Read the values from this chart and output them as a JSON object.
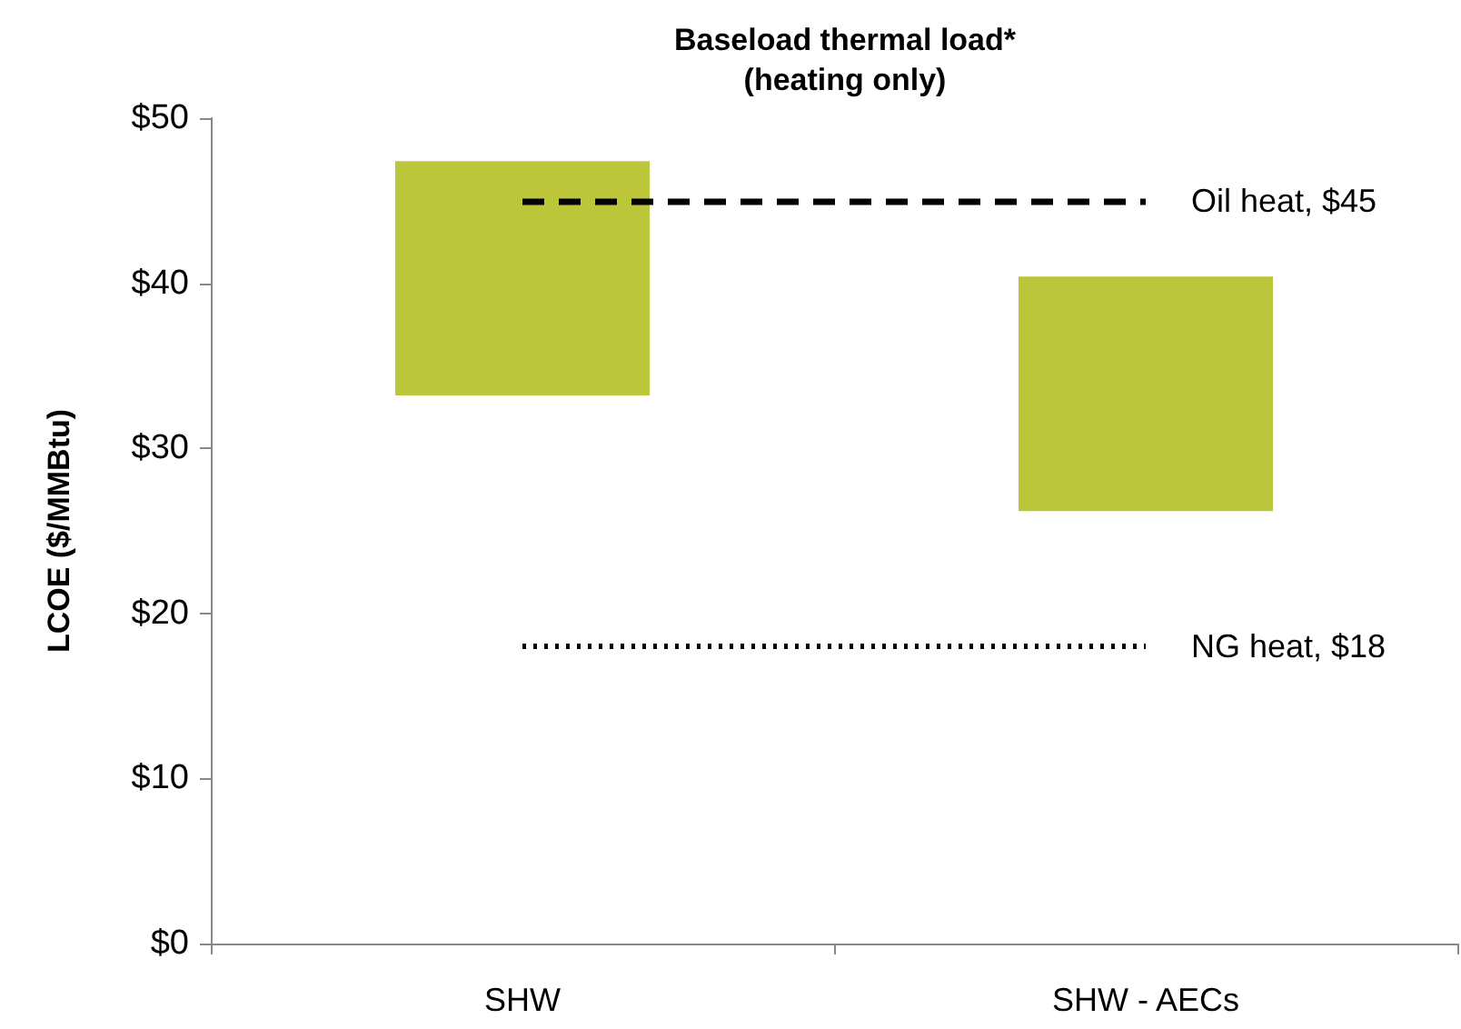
{
  "chart_data": {
    "type": "bar",
    "title": "Baseload thermal load*\n(heating only)",
    "ylabel": "LCOE ($/MMBtu)",
    "categories": [
      "SHW",
      "SHW - AECs"
    ],
    "base": [
      33.2,
      26.2
    ],
    "values": [
      14.2,
      14.2
    ],
    "color": "#bbc63a",
    "ylim": [
      0,
      50
    ],
    "yticks": [
      {
        "value": 0,
        "label": "$0"
      },
      {
        "value": 10,
        "label": "$10"
      },
      {
        "value": 20,
        "label": "$20"
      },
      {
        "value": 30,
        "label": "$30"
      },
      {
        "value": 40,
        "label": "$40"
      },
      {
        "value": 50,
        "label": "$50"
      }
    ],
    "grid": false,
    "ref_lines": [
      {
        "axis": "y",
        "value": 45,
        "label": "Oil heat, $45",
        "color": "#000000",
        "line_style": "dashed"
      },
      {
        "axis": "y",
        "value": 18,
        "label": "NG heat, $18",
        "color": "#000000",
        "line_style": "dotted"
      }
    ]
  }
}
